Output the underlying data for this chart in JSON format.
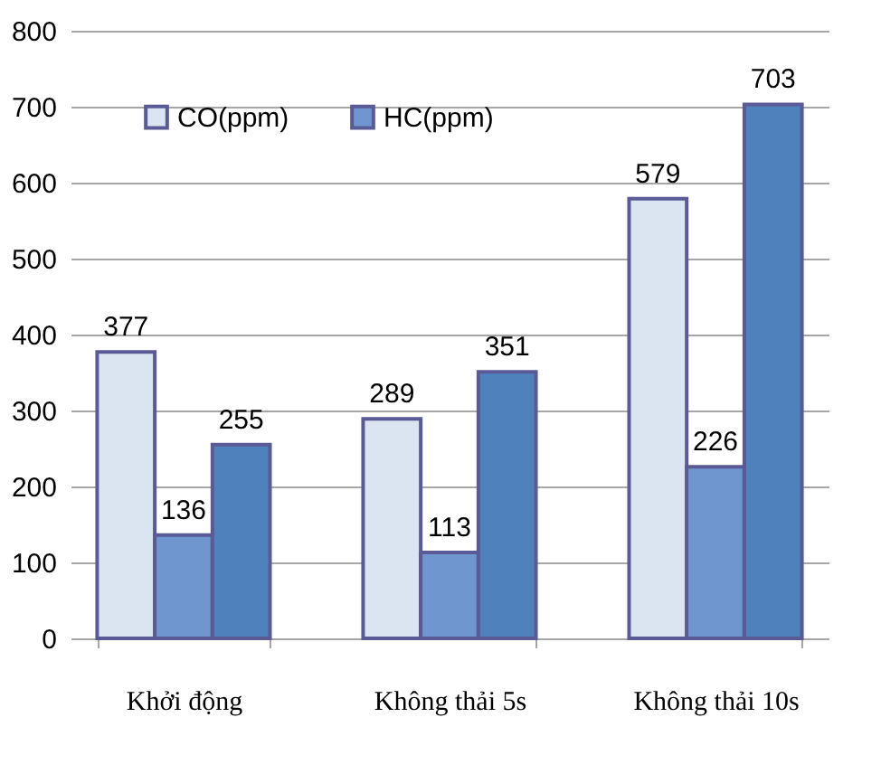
{
  "chart_data": {
    "type": "bar",
    "categories": [
      "Khởi động",
      "Không thải 5s",
      "Không thải 10s"
    ],
    "series": [
      {
        "name": "CO(ppm)",
        "color": "#dbe5f1",
        "values": [
          377,
          289,
          579
        ]
      },
      {
        "name": "HC(ppm)",
        "color": "#6f96cf",
        "values": [
          136,
          113,
          226
        ]
      },
      {
        "color": "#4f81bd",
        "values": [
          255,
          351,
          703
        ]
      }
    ],
    "ylim": [
      0,
      800
    ],
    "yticks": [
      0,
      100,
      200,
      300,
      400,
      500,
      600,
      700,
      800
    ],
    "grid": "y",
    "legend": "top left",
    "data_labels": true
  }
}
